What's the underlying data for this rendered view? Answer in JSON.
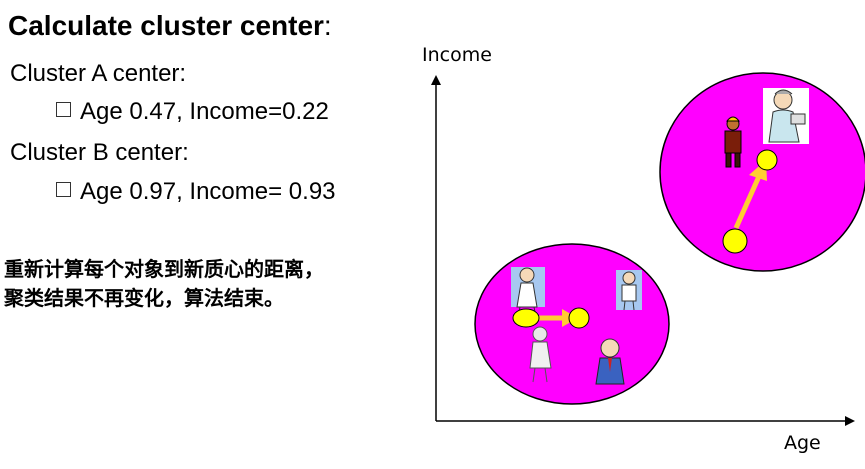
{
  "heading": {
    "title": "Calculate cluster center",
    "colon": ":"
  },
  "cluster_a": {
    "label": "Cluster A center:",
    "value": "Age 0.47, Income=0.22"
  },
  "cluster_b": {
    "label": "Cluster B center:",
    "value": "Age 0.97, Income= 0.93"
  },
  "notes": [
    "重新计算每个对象到新质心的距离，",
    "聚类结果不再变化，算法结束。"
  ],
  "axes": {
    "y_label": "Income",
    "x_label": "Age"
  },
  "colors": {
    "cluster_fill": "#ff00ff",
    "centroid_fill": "#ffff00",
    "arrow": "#ffcc33"
  }
}
